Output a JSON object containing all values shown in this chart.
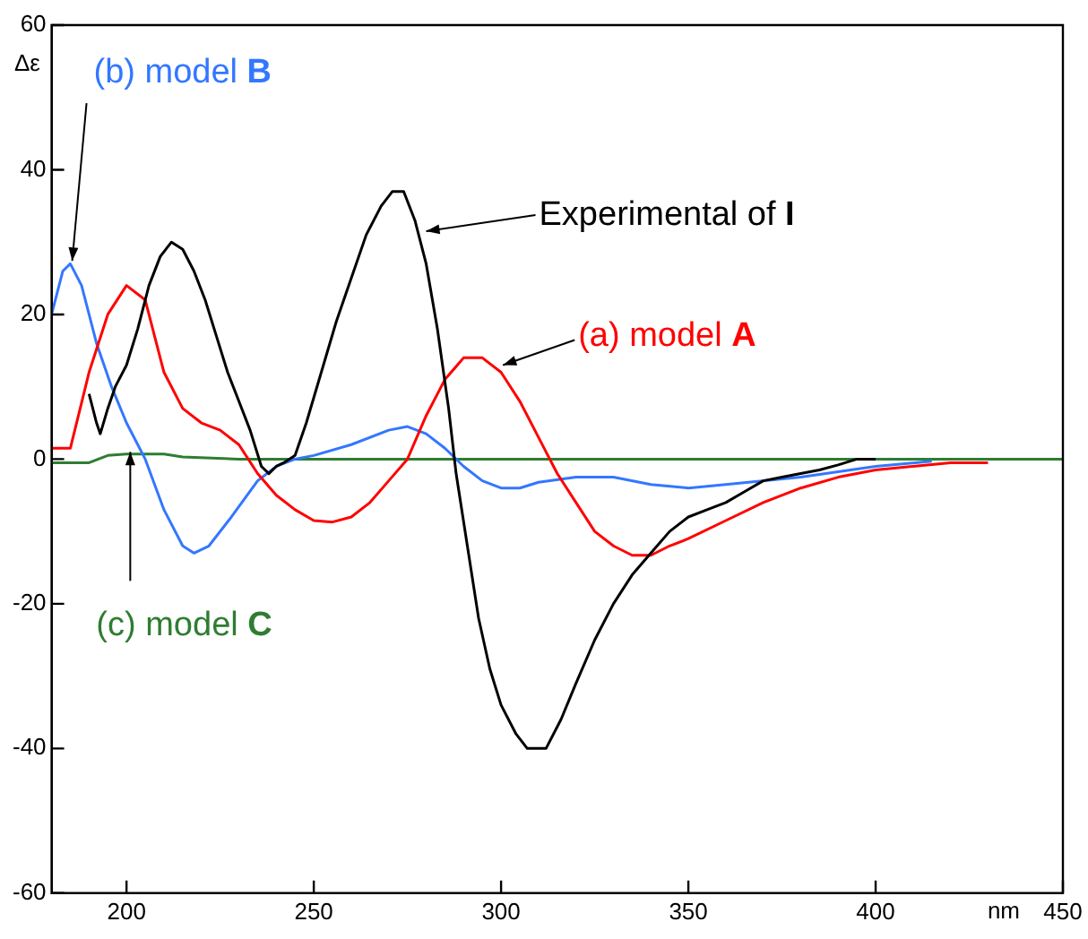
{
  "chart_data": {
    "type": "line",
    "xlabel": "nm",
    "ylabel": "Δε",
    "xlim": [
      180,
      450
    ],
    "xticks": [
      200,
      250,
      300,
      350,
      400,
      450
    ],
    "ylim": [
      -60,
      60
    ],
    "yticks": [
      -60,
      -40,
      -20,
      0,
      20,
      40,
      60
    ],
    "grid": false,
    "legend": false,
    "marker": "none",
    "line_style": "solid",
    "series": [
      {
        "color": "#000000",
        "x": [
          190,
          192,
          193,
          195,
          197,
          200,
          203,
          206,
          209,
          212,
          215,
          218,
          221,
          224,
          227,
          230,
          233,
          236,
          238,
          240,
          242,
          245,
          248,
          252,
          256,
          260,
          264,
          268,
          271,
          274,
          277,
          280,
          283,
          286,
          288,
          291,
          294,
          297,
          300,
          304,
          307,
          312,
          316,
          320,
          325,
          330,
          335,
          340,
          345,
          350,
          355,
          360,
          365,
          370,
          375,
          380,
          385,
          390,
          395,
          400
        ],
        "values": [
          9,
          5,
          3.5,
          7,
          10,
          13,
          18,
          24,
          28,
          30,
          29,
          26,
          22,
          17,
          12,
          8,
          4,
          -1,
          -2,
          -1,
          -0.5,
          0.5,
          5,
          12,
          19,
          25,
          31,
          35,
          37,
          37,
          33,
          27,
          18,
          7,
          -2,
          -12,
          -22,
          -29,
          -34,
          -38,
          -40,
          -40,
          -36,
          -31,
          -25,
          -20,
          -16,
          -13,
          -10,
          -8,
          -7,
          -6,
          -4.5,
          -3,
          -2.5,
          -2,
          -1.5,
          -0.8,
          0,
          0
        ]
      },
      {
        "color": "#ff0000",
        "x": [
          180,
          185,
          190,
          195,
          200,
          205,
          210,
          215,
          220,
          225,
          230,
          235,
          240,
          245,
          250,
          255,
          260,
          265,
          270,
          275,
          280,
          285,
          290,
          295,
          300,
          305,
          310,
          315,
          320,
          325,
          330,
          335,
          340,
          345,
          350,
          360,
          370,
          380,
          390,
          400,
          410,
          420,
          430
        ],
        "values": [
          1.5,
          1.5,
          12,
          20,
          24,
          22,
          12,
          7,
          5,
          4,
          2,
          -2,
          -5,
          -7,
          -8.5,
          -8.7,
          -8,
          -6,
          -3,
          0,
          6,
          11,
          14,
          14,
          12,
          8,
          3,
          -2,
          -6,
          -10,
          -12,
          -13.3,
          -13.3,
          -12,
          -11,
          -8.5,
          -6,
          -4,
          -2.5,
          -1.5,
          -1,
          -0.5,
          -0.5
        ]
      },
      {
        "color": "#3377ff",
        "x": [
          180,
          183,
          185,
          188,
          192,
          196,
          200,
          205,
          210,
          215,
          218,
          222,
          228,
          235,
          240,
          245,
          250,
          260,
          270,
          275,
          280,
          285,
          290,
          295,
          300,
          305,
          310,
          320,
          330,
          340,
          350,
          360,
          380,
          400,
          415
        ],
        "values": [
          20,
          26,
          27,
          24,
          16,
          10,
          5,
          0,
          -7,
          -12,
          -13,
          -12,
          -8,
          -3,
          -1,
          0,
          0.5,
          2,
          4,
          4.5,
          3.5,
          1.5,
          -1,
          -3,
          -4,
          -4,
          -3.2,
          -2.5,
          -2.5,
          -3.5,
          -4,
          -3.5,
          -2.5,
          -1,
          -0.3
        ]
      },
      {
        "color": "#2e7d32",
        "x": [
          180,
          190,
          195,
          200,
          210,
          215,
          230,
          300,
          450
        ],
        "values": [
          -0.5,
          -0.5,
          0.5,
          0.7,
          0.7,
          0.3,
          0,
          0,
          0
        ]
      }
    ],
    "annotations": [
      {
        "text": "Experimental of I",
        "x": 280,
        "y": 31.5
      },
      {
        "text": "(a) model A",
        "x": 300.5,
        "y": 13
      },
      {
        "text": "(b) model B",
        "x": 185.5,
        "y": 27.4
      },
      {
        "text": "(c) model C",
        "x": 201,
        "y": 1
      }
    ]
  }
}
